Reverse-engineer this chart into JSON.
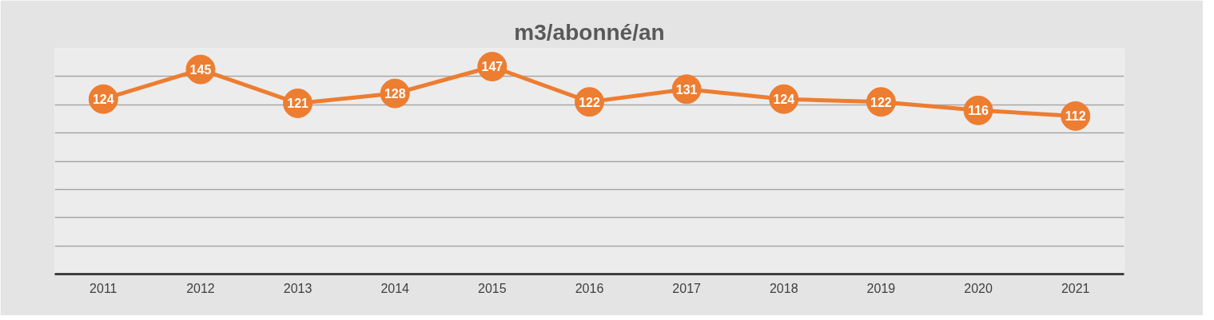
{
  "chart_data": {
    "type": "line",
    "title": "m3/abonné/an",
    "categories": [
      "2011",
      "2012",
      "2013",
      "2014",
      "2015",
      "2016",
      "2017",
      "2018",
      "2019",
      "2020",
      "2021"
    ],
    "series": [
      {
        "color": "#ed7d31",
        "values": [
          124,
          145,
          121,
          128,
          147,
          122,
          131,
          124,
          122,
          116,
          112
        ]
      }
    ],
    "ylim": [
      0,
      160
    ],
    "yticks": [
      {
        "value": 0,
        "label": null
      },
      {
        "value": 20,
        "label": null
      },
      {
        "value": 40,
        "label": null
      },
      {
        "value": 60,
        "label": null
      },
      {
        "value": 80,
        "label": null
      },
      {
        "value": 100,
        "label": null
      },
      {
        "value": 120,
        "label": null
      },
      {
        "value": 140,
        "label": null
      },
      {
        "value": 160,
        "label": null
      }
    ],
    "tick_labels": "x",
    "grid": "y",
    "marker": "circle",
    "line_style": "solid",
    "data_labels": true
  }
}
